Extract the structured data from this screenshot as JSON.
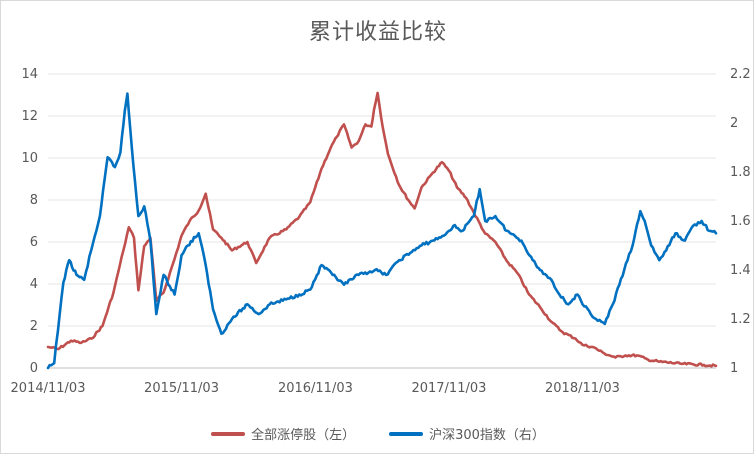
{
  "chart_data": {
    "type": "line",
    "title": "累计收益比较",
    "x_ticks": [
      "2014/11/03",
      "2015/11/03",
      "2016/11/03",
      "2017/11/03",
      "2018/11/03"
    ],
    "y_left_ticks": [
      "0",
      "2",
      "4",
      "6",
      "8",
      "10",
      "12",
      "14"
    ],
    "y_right_ticks": [
      "1",
      "1.2",
      "1.4",
      "1.6",
      "1.8",
      "2",
      "2.2"
    ],
    "ylim_left": [
      0,
      14
    ],
    "ylim_right": [
      1,
      2.2
    ],
    "xlim": [
      "2014-11-03",
      "2019-11-03"
    ],
    "grid": true,
    "legend_position": "bottom",
    "series": [
      {
        "name": "全部涨停股（左）",
        "axis": "left",
        "color": "#c0504d",
        "points": [
          [
            "2014-11-03",
            1.0
          ],
          [
            "2014-12-01",
            0.9
          ],
          [
            "2015-01-05",
            1.3
          ],
          [
            "2015-02-02",
            1.2
          ],
          [
            "2015-03-02",
            1.4
          ],
          [
            "2015-04-01",
            2.0
          ],
          [
            "2015-05-01",
            3.6
          ],
          [
            "2015-05-28",
            5.6
          ],
          [
            "2015-06-12",
            6.7
          ],
          [
            "2015-06-26",
            6.2
          ],
          [
            "2015-07-08",
            3.7
          ],
          [
            "2015-07-24",
            5.8
          ],
          [
            "2015-08-10",
            6.2
          ],
          [
            "2015-08-26",
            3.2
          ],
          [
            "2015-09-15",
            3.6
          ],
          [
            "2015-10-15",
            5.2
          ],
          [
            "2015-11-03",
            6.3
          ],
          [
            "2015-11-25",
            7.0
          ],
          [
            "2015-12-20",
            7.5
          ],
          [
            "2016-01-08",
            8.3
          ],
          [
            "2016-01-28",
            6.6
          ],
          [
            "2016-02-20",
            6.2
          ],
          [
            "2016-03-20",
            5.6
          ],
          [
            "2016-05-01",
            6.0
          ],
          [
            "2016-05-25",
            5.0
          ],
          [
            "2016-07-01",
            6.2
          ],
          [
            "2016-08-15",
            6.6
          ],
          [
            "2016-09-20",
            7.2
          ],
          [
            "2016-10-20",
            7.9
          ],
          [
            "2016-11-20",
            9.5
          ],
          [
            "2016-12-15",
            10.5
          ],
          [
            "2016-12-31",
            11.0
          ],
          [
            "2017-01-20",
            11.6
          ],
          [
            "2017-02-10",
            10.5
          ],
          [
            "2017-03-01",
            10.8
          ],
          [
            "2017-03-20",
            11.6
          ],
          [
            "2017-04-05",
            11.5
          ],
          [
            "2017-04-12",
            12.3
          ],
          [
            "2017-04-22",
            13.1
          ],
          [
            "2017-05-01",
            12.0
          ],
          [
            "2017-05-20",
            10.2
          ],
          [
            "2017-06-20",
            8.7
          ],
          [
            "2017-07-15",
            8.0
          ],
          [
            "2017-08-01",
            7.6
          ],
          [
            "2017-08-20",
            8.6
          ],
          [
            "2017-09-20",
            9.3
          ],
          [
            "2017-10-15",
            9.8
          ],
          [
            "2017-11-03",
            9.4
          ],
          [
            "2017-11-25",
            8.6
          ],
          [
            "2017-12-20",
            8.1
          ],
          [
            "2018-01-10",
            7.4
          ],
          [
            "2018-02-10",
            6.4
          ],
          [
            "2018-03-10",
            6.0
          ],
          [
            "2018-04-10",
            5.1
          ],
          [
            "2018-05-10",
            4.5
          ],
          [
            "2018-06-10",
            3.5
          ],
          [
            "2018-07-10",
            2.9
          ],
          [
            "2018-08-10",
            2.2
          ],
          [
            "2018-09-10",
            1.7
          ],
          [
            "2018-10-15",
            1.4
          ],
          [
            "2018-11-03",
            1.1
          ],
          [
            "2018-12-01",
            1.0
          ],
          [
            "2019-01-01",
            0.7
          ],
          [
            "2019-02-01",
            0.5
          ],
          [
            "2019-03-01",
            0.6
          ],
          [
            "2019-04-01",
            0.6
          ],
          [
            "2019-05-01",
            0.4
          ],
          [
            "2019-06-01",
            0.3
          ],
          [
            "2019-08-01",
            0.2
          ],
          [
            "2019-10-01",
            0.15
          ],
          [
            "2019-11-03",
            0.1
          ]
        ]
      },
      {
        "name": "沪深300指数（右）",
        "axis": "right",
        "color": "#0070c0",
        "points": [
          [
            "2014-11-03",
            1.0
          ],
          [
            "2014-11-20",
            1.02
          ],
          [
            "2014-12-05",
            1.22
          ],
          [
            "2014-12-15",
            1.35
          ],
          [
            "2014-12-31",
            1.44
          ],
          [
            "2015-01-20",
            1.38
          ],
          [
            "2015-02-10",
            1.36
          ],
          [
            "2015-03-01",
            1.48
          ],
          [
            "2015-03-25",
            1.62
          ],
          [
            "2015-04-15",
            1.86
          ],
          [
            "2015-05-05",
            1.82
          ],
          [
            "2015-05-20",
            1.88
          ],
          [
            "2015-06-01",
            2.05
          ],
          [
            "2015-06-08",
            2.12
          ],
          [
            "2015-06-20",
            1.9
          ],
          [
            "2015-07-08",
            1.62
          ],
          [
            "2015-07-24",
            1.66
          ],
          [
            "2015-08-10",
            1.52
          ],
          [
            "2015-08-26",
            1.22
          ],
          [
            "2015-09-15",
            1.38
          ],
          [
            "2015-10-15",
            1.3
          ],
          [
            "2015-11-03",
            1.46
          ],
          [
            "2015-11-20",
            1.5
          ],
          [
            "2015-12-20",
            1.55
          ],
          [
            "2016-01-08",
            1.42
          ],
          [
            "2016-01-28",
            1.24
          ],
          [
            "2016-02-20",
            1.14
          ],
          [
            "2016-03-20",
            1.2
          ],
          [
            "2016-05-01",
            1.26
          ],
          [
            "2016-06-01",
            1.22
          ],
          [
            "2016-07-01",
            1.26
          ],
          [
            "2016-08-15",
            1.28
          ],
          [
            "2016-09-20",
            1.3
          ],
          [
            "2016-10-20",
            1.32
          ],
          [
            "2016-11-20",
            1.42
          ],
          [
            "2016-12-20",
            1.38
          ],
          [
            "2017-01-20",
            1.34
          ],
          [
            "2017-03-01",
            1.38
          ],
          [
            "2017-04-15",
            1.4
          ],
          [
            "2017-05-15",
            1.38
          ],
          [
            "2017-06-20",
            1.44
          ],
          [
            "2017-07-20",
            1.47
          ],
          [
            "2017-08-20",
            1.5
          ],
          [
            "2017-09-20",
            1.52
          ],
          [
            "2017-10-20",
            1.54
          ],
          [
            "2017-11-03",
            1.56
          ],
          [
            "2017-11-15",
            1.58
          ],
          [
            "2017-12-10",
            1.56
          ],
          [
            "2018-01-10",
            1.62
          ],
          [
            "2018-01-26",
            1.73
          ],
          [
            "2018-02-10",
            1.6
          ],
          [
            "2018-03-10",
            1.62
          ],
          [
            "2018-04-10",
            1.56
          ],
          [
            "2018-05-20",
            1.52
          ],
          [
            "2018-06-20",
            1.44
          ],
          [
            "2018-07-10",
            1.4
          ],
          [
            "2018-08-10",
            1.36
          ],
          [
            "2018-09-01",
            1.3
          ],
          [
            "2018-09-25",
            1.26
          ],
          [
            "2018-10-20",
            1.3
          ],
          [
            "2018-11-03",
            1.26
          ],
          [
            "2018-12-10",
            1.2
          ],
          [
            "2019-01-03",
            1.18
          ],
          [
            "2019-01-25",
            1.26
          ],
          [
            "2019-02-25",
            1.4
          ],
          [
            "2019-03-20",
            1.5
          ],
          [
            "2019-04-10",
            1.64
          ],
          [
            "2019-04-22",
            1.6
          ],
          [
            "2019-05-10",
            1.5
          ],
          [
            "2019-06-01",
            1.44
          ],
          [
            "2019-06-20",
            1.48
          ],
          [
            "2019-07-15",
            1.55
          ],
          [
            "2019-08-10",
            1.52
          ],
          [
            "2019-09-01",
            1.58
          ],
          [
            "2019-09-25",
            1.6
          ],
          [
            "2019-10-15",
            1.56
          ],
          [
            "2019-11-03",
            1.55
          ]
        ]
      }
    ]
  }
}
